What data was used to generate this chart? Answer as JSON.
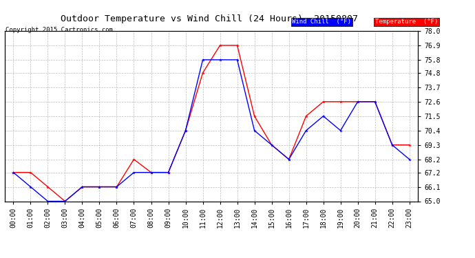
{
  "title": "Outdoor Temperature vs Wind Chill (24 Hours)  20150807",
  "copyright": "Copyright 2015 Cartronics.com",
  "x_labels": [
    "00:00",
    "01:00",
    "02:00",
    "03:00",
    "04:00",
    "05:00",
    "06:00",
    "07:00",
    "08:00",
    "09:00",
    "10:00",
    "11:00",
    "12:00",
    "13:00",
    "14:00",
    "15:00",
    "16:00",
    "17:00",
    "18:00",
    "19:00",
    "20:00",
    "21:00",
    "22:00",
    "23:00"
  ],
  "temperature": [
    67.2,
    67.2,
    66.1,
    65.0,
    66.1,
    66.1,
    66.1,
    68.2,
    67.2,
    67.2,
    70.4,
    74.8,
    76.9,
    76.9,
    71.5,
    69.3,
    68.2,
    71.5,
    72.6,
    72.6,
    72.6,
    72.6,
    69.3,
    69.3
  ],
  "wind_chill": [
    67.2,
    66.1,
    65.0,
    65.0,
    66.1,
    66.1,
    66.1,
    67.2,
    67.2,
    67.2,
    70.4,
    75.8,
    75.8,
    75.8,
    70.4,
    69.3,
    68.2,
    70.4,
    71.5,
    70.4,
    72.6,
    72.6,
    69.3,
    68.2
  ],
  "ylim": [
    65.0,
    78.0
  ],
  "yticks": [
    65.0,
    66.1,
    67.2,
    68.2,
    69.3,
    70.4,
    71.5,
    72.6,
    73.7,
    74.8,
    75.8,
    76.9,
    78.0
  ],
  "temp_color": "#ff0000",
  "wind_chill_color": "#0000ff",
  "bg_color": "#ffffff",
  "grid_color": "#bbbbbb",
  "legend_wind_label": "Wind Chill  (°F)",
  "legend_temp_label": "Temperature  (°F)"
}
